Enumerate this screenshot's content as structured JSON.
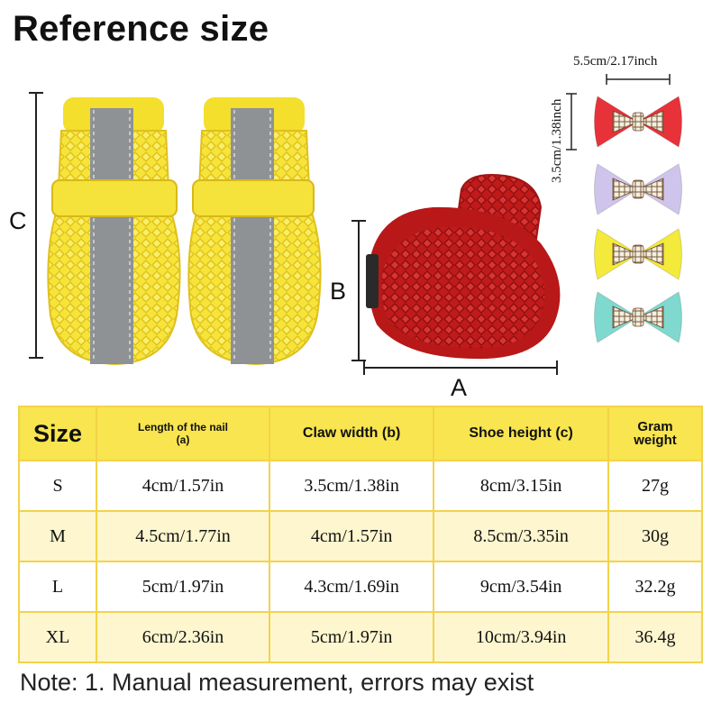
{
  "title": "Reference size",
  "dimension_labels": {
    "a": "A",
    "b": "B",
    "c": "C"
  },
  "bow": {
    "width_label": "5.5cm/2.17inch",
    "height_label": "3.5cm/1.38inch",
    "colors": [
      "#e8323a",
      "#cfc5ec",
      "#f3ea3c",
      "#7fd9cf"
    ]
  },
  "shoe_colors": {
    "yellow": "#f5e23a",
    "grey_stripe": "#8f9294",
    "red": "#c81d1d"
  },
  "table": {
    "headers": {
      "size": "Size",
      "nail_line1": "Length of the nail",
      "nail_line2": "(a)",
      "claw": "Claw width (b)",
      "height": "Shoe height (c)",
      "gram_line1": "Gram",
      "gram_line2": "weight"
    },
    "rows": [
      {
        "size": "S",
        "nail": "4cm/1.57in",
        "claw": "3.5cm/1.38in",
        "height": "8cm/3.15in",
        "weight": "27g"
      },
      {
        "size": "M",
        "nail": "4.5cm/1.77in",
        "claw": "4cm/1.57in",
        "height": "8.5cm/3.35in",
        "weight": "30g"
      },
      {
        "size": "L",
        "nail": "5cm/1.97in",
        "claw": "4.3cm/1.69in",
        "height": "9cm/3.54in",
        "weight": "32.2g"
      },
      {
        "size": "XL",
        "nail": "6cm/2.36in",
        "claw": "5cm/1.97in",
        "height": "10cm/3.94in",
        "weight": "36.4g"
      }
    ]
  },
  "note": "Note: 1. Manual measurement, errors may exist"
}
